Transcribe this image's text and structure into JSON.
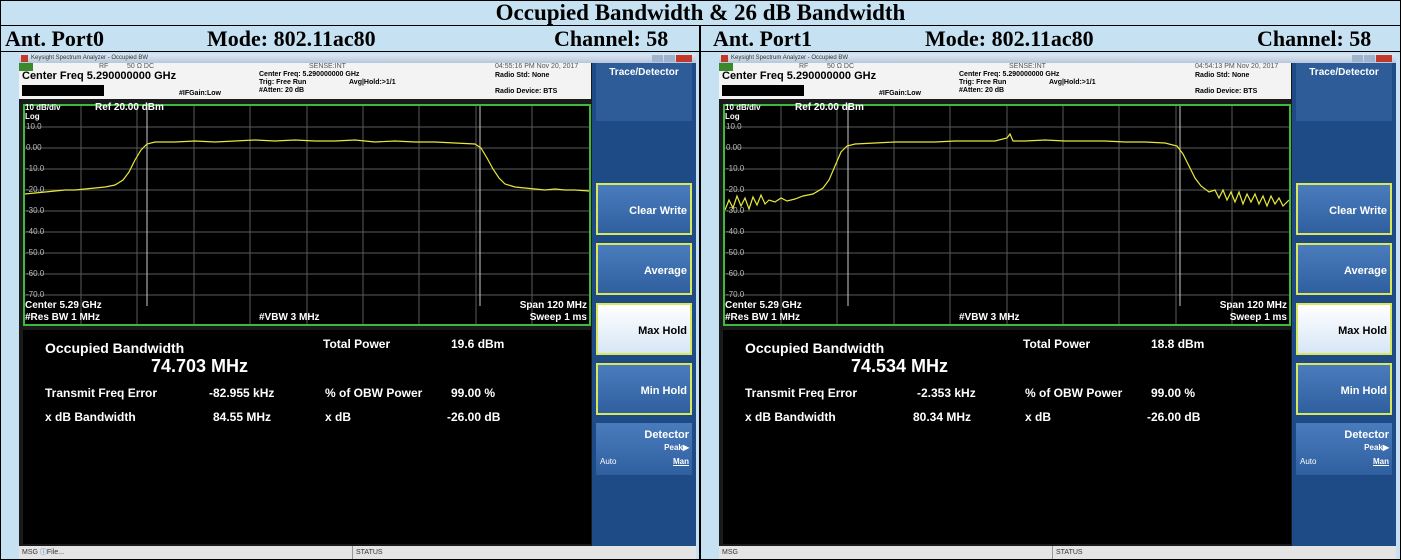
{
  "title": "Occupied Bandwidth  &  26 dB Bandwidth",
  "colors": {
    "background": "#c6e2f2",
    "trace": "#e8e83a",
    "graticule_border": "#3fb83f",
    "softkey": "#4a7cbd"
  },
  "panels": [
    {
      "port": "Ant. Port0",
      "mode": "Mode: 802.11ac80",
      "channel": "Channel: 58",
      "window_title": "Keysight Spectrum Analyzer - Occupied BW",
      "rf": "RF",
      "ohm": "50 Ω  DC",
      "sense": "SENSE:INT",
      "timestamp": "04:55:16 PM Nov 20, 2017",
      "center_freq": "Center Freq 5.290000000 GHz",
      "center_freq_small": "Center Freq: 5.290000000 GHz",
      "trig": "Trig: Free Run",
      "avg_hold": "Avg|Hold:>1/1",
      "ifgain": "#IFGain:Low",
      "atten": "#Atten: 20 dB",
      "radio_std": "Radio Std: None",
      "radio_device": "Radio Device: BTS",
      "scale": "10 dB/div",
      "log": "Log",
      "ref": "Ref 20.00 dBm",
      "y_ticks": [
        "10.0",
        "0.00",
        "-10.0",
        "-20.0",
        "-30.0",
        "-40.0",
        "-50.0",
        "-60.0",
        "-70.0"
      ],
      "center": "Center  5.29 GHz",
      "res_bw": "#Res BW  1 MHz",
      "vbw": "#VBW  3 MHz",
      "span": "Span 120 MHz",
      "sweep": "Sweep  1 ms",
      "obw_label": "Occupied Bandwidth",
      "obw_value": "74.703 MHz",
      "total_power_label": "Total Power",
      "total_power": "19.6 dBm",
      "tfe_label": "Transmit Freq Error",
      "tfe": "-82.955 kHz",
      "obw_pct_label": "% of OBW Power",
      "obw_pct": "99.00 %",
      "xdb_bw_label": "x dB Bandwidth",
      "xdb_bw": "84.55 MHz",
      "xdb_label": "x dB",
      "xdb": "-26.00 dB",
      "status_msg": "MSG",
      "status_file": "File...",
      "status": "STATUS",
      "softkeys": {
        "menu": "Trace/Detector",
        "clear_write": "Clear Write",
        "average": "Average",
        "max_hold": "Max Hold",
        "min_hold": "Min Hold",
        "detector": "Detector",
        "peak": "Peak▶",
        "auto": "Auto",
        "man": "Man"
      },
      "window_controls": [
        "minimize",
        "maximize",
        "close"
      ]
    },
    {
      "port": "Ant. Port1",
      "mode": "Mode: 802.11ac80",
      "channel": "Channel: 58",
      "window_title": "Keysight Spectrum Analyzer - Occupied BW",
      "rf": "RF",
      "ohm": "50 Ω  DC",
      "sense": "SENSE:INT",
      "timestamp": "04:54:13 PM Nov 20, 2017",
      "center_freq": "Center Freq 5.290000000 GHz",
      "center_freq_small": "Center Freq: 5.290000000 GHz",
      "trig": "Trig: Free Run",
      "avg_hold": "Avg|Hold:>1/1",
      "ifgain": "#IFGain:Low",
      "atten": "#Atten: 20 dB",
      "radio_std": "Radio Std: None",
      "radio_device": "Radio Device: BTS",
      "scale": "10 dB/div",
      "log": "Log",
      "ref": "Ref 20.00 dBm",
      "y_ticks": [
        "10.0",
        "0.00",
        "-10.0",
        "-20.0",
        "-30.0",
        "-40.0",
        "-50.0",
        "-60.0",
        "-70.0"
      ],
      "center": "Center  5.29 GHz",
      "res_bw": "#Res BW  1 MHz",
      "vbw": "#VBW  3 MHz",
      "span": "Span 120 MHz",
      "sweep": "Sweep  1 ms",
      "obw_label": "Occupied Bandwidth",
      "obw_value": "74.534 MHz",
      "total_power_label": "Total Power",
      "total_power": "18.8 dBm",
      "tfe_label": "Transmit Freq Error",
      "tfe": "-2.353 kHz",
      "obw_pct_label": "% of OBW Power",
      "obw_pct": "99.00 %",
      "xdb_bw_label": "x dB Bandwidth",
      "xdb_bw": "80.34 MHz",
      "xdb_label": "x dB",
      "xdb": "-26.00 dB",
      "status_msg": "MSG",
      "status_file": "",
      "status": "STATUS",
      "softkeys": {
        "menu": "Trace/Detector",
        "clear_write": "Clear Write",
        "average": "Average",
        "max_hold": "Max Hold",
        "min_hold": "Min Hold",
        "detector": "Detector",
        "peak": "Peak▶",
        "auto": "Auto",
        "man": "Man"
      },
      "window_controls": [
        "minimize",
        "maximize",
        "close"
      ]
    }
  ]
}
